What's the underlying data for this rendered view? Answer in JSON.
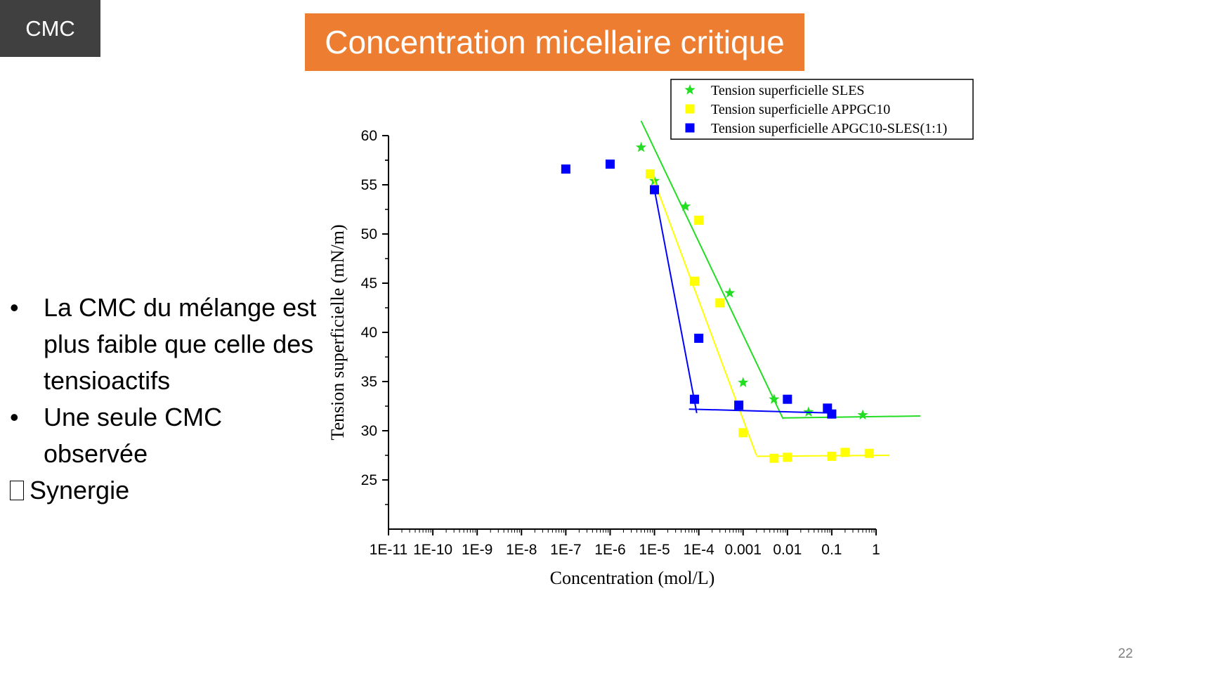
{
  "slide": {
    "tag": "CMC",
    "title": "Concentration micellaire critique",
    "page_number": "22"
  },
  "bullets": [
    "La CMC du mélange est plus faible que celle des tensioactifs",
    "Une seule CMC observée"
  ],
  "conclusion": "Synergie",
  "chart_data": {
    "type": "scatter",
    "xlabel": "Concentration (mol/L)",
    "ylabel": "Tension superficielle (mN/m)",
    "xscale": "log",
    "xlim": [
      1e-11,
      1
    ],
    "ylim": [
      20,
      60
    ],
    "x_ticks": [
      "1E-11",
      "1E-10",
      "1E-9",
      "1E-8",
      "1E-7",
      "1E-6",
      "1E-5",
      "1E-4",
      "0.001",
      "0.01",
      "0.1",
      "1"
    ],
    "y_ticks": [
      "25",
      "30",
      "35",
      "40",
      "45",
      "50",
      "55",
      "60"
    ],
    "legend_position": "top-right",
    "series": [
      {
        "name": "Tension superficielle SLES",
        "marker": "star",
        "color": "#22dd22",
        "points": [
          [
            5e-06,
            58.8
          ],
          [
            1e-05,
            55.4
          ],
          [
            5e-05,
            52.8
          ],
          [
            0.0005,
            44.0
          ],
          [
            0.001,
            34.9
          ],
          [
            0.005,
            33.2
          ],
          [
            0.03,
            31.9
          ],
          [
            0.5,
            31.6
          ]
        ],
        "fit_lines": [
          [
            [
              5e-06,
              61.5
            ],
            [
              0.008,
              31.2
            ]
          ],
          [
            [
              0.008,
              31.3
            ],
            [
              10,
              31.5
            ]
          ]
        ]
      },
      {
        "name": "Tension superficielle  APPGC10",
        "marker": "square",
        "color": "#ffff00",
        "points": [
          [
            8e-06,
            56.1
          ],
          [
            0.0001,
            51.4
          ],
          [
            8e-05,
            45.2
          ],
          [
            0.0003,
            43.0
          ],
          [
            0.001,
            29.8
          ],
          [
            0.005,
            27.2
          ],
          [
            0.01,
            27.3
          ],
          [
            0.1,
            27.4
          ],
          [
            0.2,
            27.8
          ],
          [
            0.7,
            27.7
          ]
        ],
        "fit_lines": [
          [
            [
              8e-06,
              56.5
            ],
            [
              0.002,
              27.5
            ]
          ],
          [
            [
              0.002,
              27.4
            ],
            [
              2,
              27.5
            ]
          ]
        ]
      },
      {
        "name": "Tension superficielle APGC10-SLES(1:1)",
        "marker": "square",
        "color": "#0000ff",
        "points": [
          [
            1e-07,
            56.6
          ],
          [
            1e-06,
            57.1
          ],
          [
            1e-05,
            54.5
          ],
          [
            0.0001,
            39.4
          ],
          [
            8e-05,
            33.2
          ],
          [
            0.0008,
            32.6
          ],
          [
            0.01,
            33.2
          ],
          [
            0.08,
            32.3
          ],
          [
            0.1,
            31.7
          ]
        ],
        "fit_lines": [
          [
            [
              1e-05,
              54.5
            ],
            [
              9e-05,
              31.8
            ]
          ],
          [
            [
              6e-05,
              32.2
            ],
            [
              0.1,
              31.8
            ]
          ]
        ]
      }
    ]
  }
}
